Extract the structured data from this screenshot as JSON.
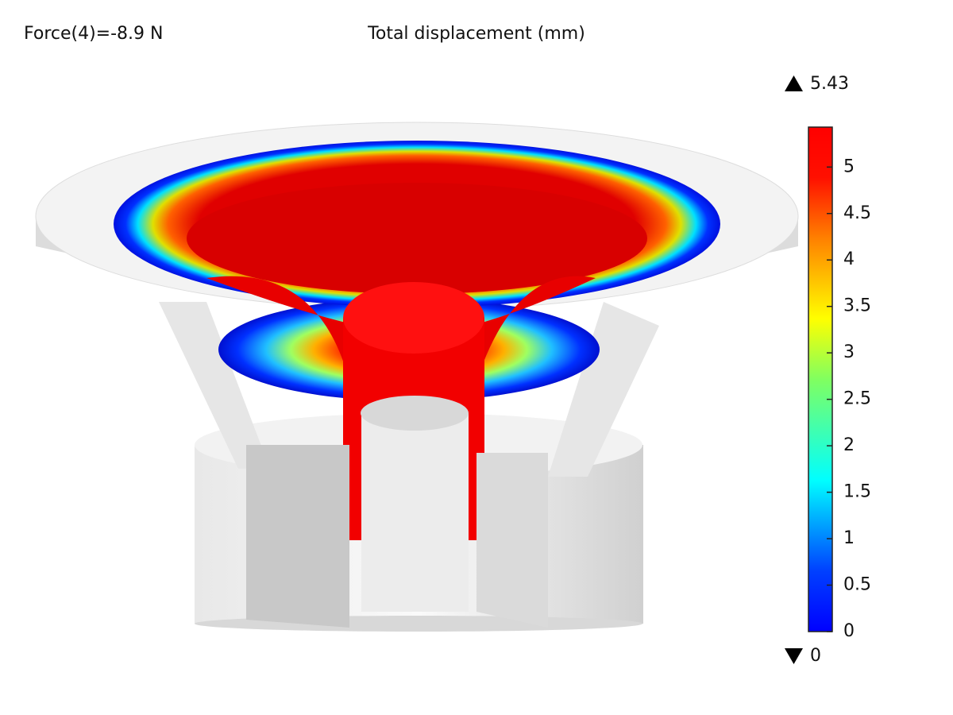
{
  "header": {
    "annotation": "Force(4)=-8.9 N",
    "title": "Total displacement (mm)"
  },
  "colorbar": {
    "max": 5.43,
    "min": 0,
    "ticks": [
      0,
      0.5,
      1,
      1.5,
      2,
      2.5,
      3,
      3.5,
      4,
      4.5,
      5
    ]
  }
}
